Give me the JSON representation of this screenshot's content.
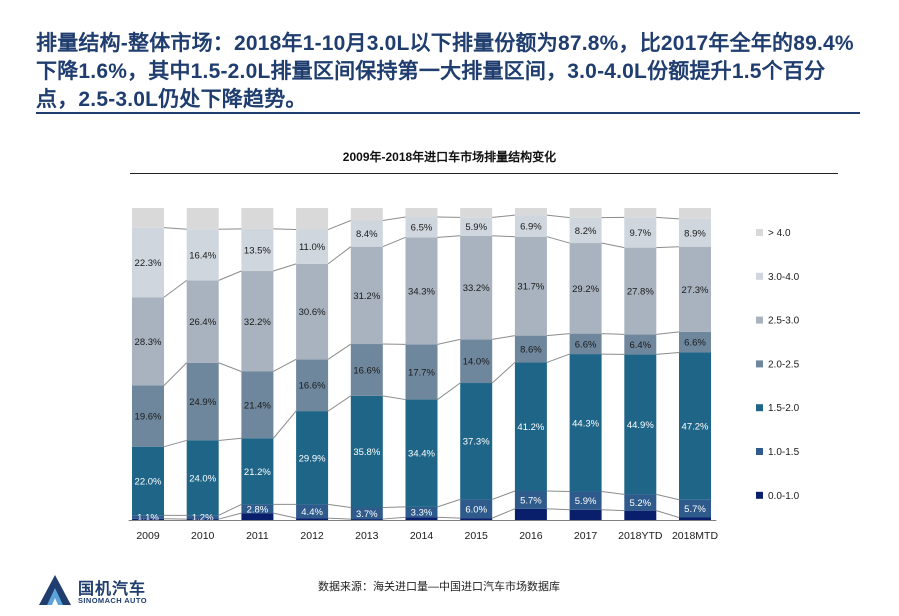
{
  "headline": "排量结构-整体市场：2018年1-10月3.0L以下排量份额为87.8%，比2017年全年的89.4%下降1.6%，其中1.5-2.0L排量区间保持第一大排量区间，3.0-4.0L份额提升1.5个百分点，2.5-3.0L仍处下降趋势。",
  "source": "数据来源：海关进口量—中国进口汽车市场数据库",
  "logo": {
    "name": "国机汽车",
    "sub": "SINOMACH AUTO"
  },
  "colors": {
    "headline": "#1f3d6e",
    "connector": "#8c8c8c"
  },
  "chart_data": {
    "type": "bar",
    "stacked": true,
    "percent": true,
    "title": "2009年-2018年进口车市场排量结构变化",
    "categories": [
      "2009",
      "2010",
      "2011",
      "2012",
      "2013",
      "2014",
      "2015",
      "2016",
      "2017",
      "2018YTD",
      "2018MTD"
    ],
    "legend_position": "right",
    "series": [
      {
        "name": "0.0-1.0",
        "color": "#0a1f6b",
        "values": [
          0.4,
          0.3,
          2.2,
          0.6,
          0.3,
          0.9,
          0.6,
          3.6,
          3.3,
          3.0,
          0.8
        ],
        "labels": [
          "",
          "",
          "",
          "",
          "",
          "",
          "",
          "",
          "",
          "",
          ""
        ]
      },
      {
        "name": "1.0-1.5",
        "color": "#2e5b8c",
        "values": [
          1.1,
          1.2,
          2.8,
          4.4,
          3.7,
          3.3,
          6.0,
          5.7,
          5.9,
          5.2,
          5.7
        ],
        "labels": [
          "1.1%",
          "1.2%",
          "2.8%",
          "4.4%",
          "3.7%",
          "3.3%",
          "6.0%",
          "5.7%",
          "5.9%",
          "5.2%",
          "5.7%"
        ]
      },
      {
        "name": "1.5-2.0",
        "color": "#1e6587",
        "values": [
          22.0,
          24.0,
          21.2,
          29.9,
          35.8,
          34.4,
          37.3,
          41.2,
          44.3,
          44.9,
          47.2
        ],
        "labels": [
          "22.0%",
          "24.0%",
          "21.2%",
          "29.9%",
          "35.8%",
          "34.4%",
          "37.3%",
          "41.2%",
          "44.3%",
          "44.9%",
          "47.2%"
        ]
      },
      {
        "name": "2.0-2.5",
        "color": "#6e879d",
        "values": [
          19.6,
          24.9,
          21.4,
          16.6,
          16.6,
          17.7,
          14.0,
          8.6,
          6.6,
          6.4,
          6.6
        ],
        "labels": [
          "19.6%",
          "24.9%",
          "21.4%",
          "16.6%",
          "16.6%",
          "17.7%",
          "14.0%",
          "8.6%",
          "6.6%",
          "6.4%",
          "6.6%"
        ]
      },
      {
        "name": "2.5-3.0",
        "color": "#a8b3bf",
        "values": [
          28.3,
          26.4,
          32.2,
          30.6,
          31.2,
          34.3,
          33.2,
          31.7,
          29.2,
          27.8,
          27.3
        ],
        "labels": [
          "28.3%",
          "26.4%",
          "32.2%",
          "30.6%",
          "31.2%",
          "34.3%",
          "33.2%",
          "31.7%",
          "29.2%",
          "27.8%",
          "27.3%"
        ]
      },
      {
        "name": "3.0-4.0",
        "color": "#cfd6de",
        "values": [
          22.3,
          16.4,
          13.5,
          11.0,
          8.4,
          6.5,
          5.9,
          6.9,
          8.2,
          9.7,
          8.9
        ],
        "labels": [
          "22.3%",
          "16.4%",
          "13.5%",
          "11.0%",
          "8.4%",
          "6.5%",
          "5.9%",
          "6.9%",
          "8.2%",
          "9.7%",
          "8.9%"
        ]
      },
      {
        "name": "> 4.0",
        "color": "#d9d9d9",
        "values": [
          6.3,
          6.8,
          6.7,
          6.9,
          4.0,
          2.9,
          3.0,
          2.3,
          3.1,
          3.0,
          3.5
        ],
        "labels": [
          "",
          "",
          "",
          "",
          "",
          "",
          "",
          "",
          "",
          "",
          ""
        ]
      }
    ]
  }
}
